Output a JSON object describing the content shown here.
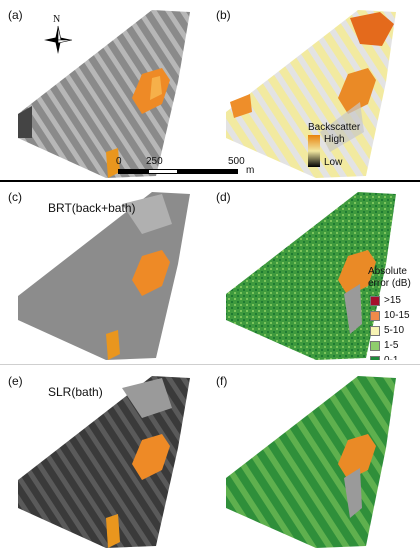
{
  "panels": {
    "a": {
      "label": "(a)"
    },
    "b": {
      "label": "(b)"
    },
    "c": {
      "label": "(c)",
      "method": "BRT(back+bath)"
    },
    "d": {
      "label": "(d)"
    },
    "e": {
      "label": "(e)",
      "method": "SLR(bath)"
    },
    "f": {
      "label": "(f)"
    }
  },
  "north_arrow": {
    "letter": "N"
  },
  "scale_bar": {
    "ticks": [
      "0",
      "250",
      "500"
    ],
    "unit": "m"
  },
  "backscatter_legend": {
    "title": "Backscatter",
    "high": "High",
    "low": "Low",
    "high_color": "#e8820c",
    "mid_color": "#f1e7a0",
    "low_color": "#000000"
  },
  "error_legend": {
    "title_line1": "Absolute",
    "title_line2": "error (dB)",
    "items": [
      {
        "label": ">15",
        "color": "#a50f2c"
      },
      {
        "label": "10-15",
        "color": "#ef8a4a"
      },
      {
        "label": "5-10",
        "color": "#f7f3b3"
      },
      {
        "label": "1-5",
        "color": "#8fcf6c"
      },
      {
        "label": "0-1",
        "color": "#1e8a3c"
      }
    ]
  }
}
